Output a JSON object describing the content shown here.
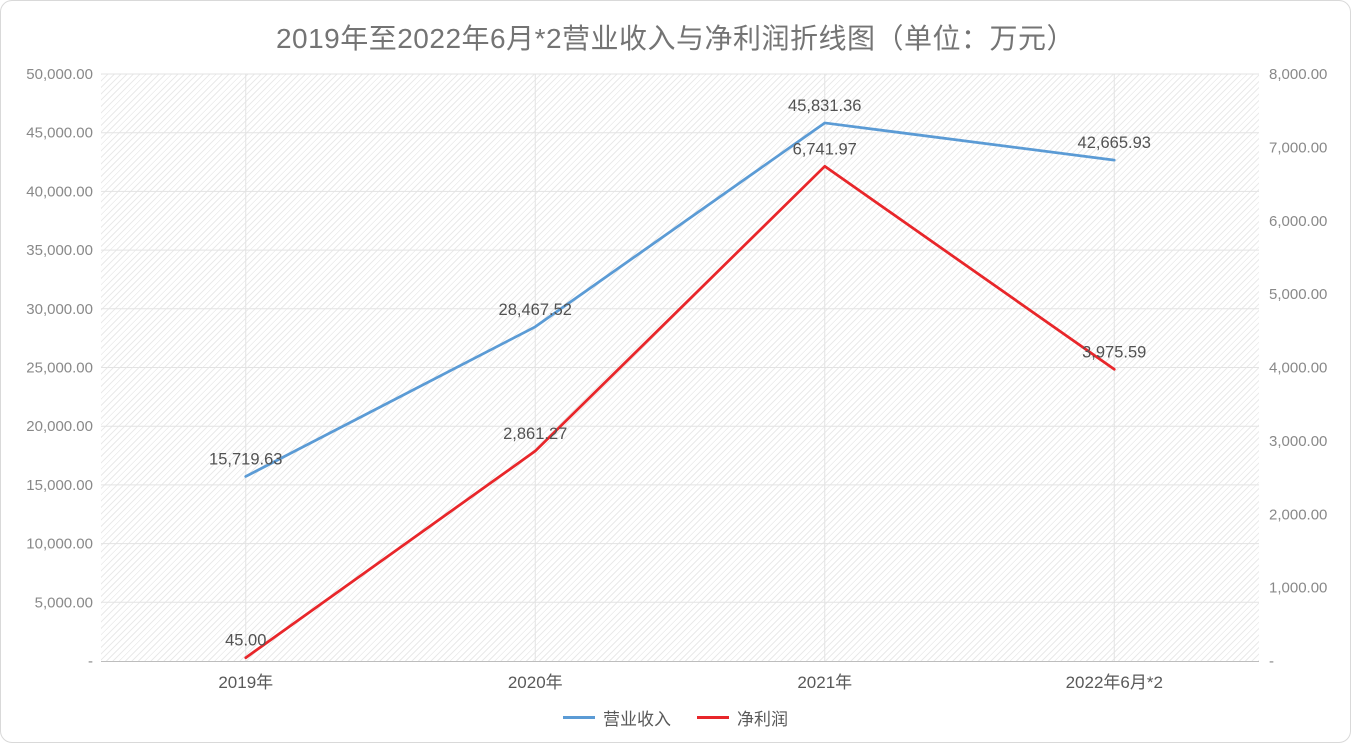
{
  "title": "2019年至2022年6月*2营业收入与净利润折线图（单位：万元）",
  "legend": {
    "items": [
      {
        "label": "营业收入",
        "color": "#5b9bd5"
      },
      {
        "label": "净利润",
        "color": "#e8262a"
      }
    ]
  },
  "chart_data": {
    "type": "line",
    "title": "2019年至2022年6月*2营业收入与净利润折线图（单位：万元）",
    "categories": [
      "2019年",
      "2020年",
      "2021年",
      "2022年6月*2"
    ],
    "series": [
      {
        "name": "营业收入",
        "axis": "left",
        "color": "#5b9bd5",
        "values": [
          15719.63,
          28467.52,
          45831.36,
          42665.93
        ],
        "labels": [
          "15,719.63",
          "28,467.52",
          "45,831.36",
          "42,665.93"
        ]
      },
      {
        "name": "净利润",
        "axis": "right",
        "color": "#e8262a",
        "values": [
          45.0,
          2861.27,
          6741.97,
          3975.59
        ],
        "labels": [
          "45.00",
          "2,861.27",
          "6,741.97",
          "3,975.59"
        ]
      }
    ],
    "left_axis": {
      "min": 0,
      "max": 50000,
      "step": 5000,
      "tick_labels": [
        "-",
        "5,000.00",
        "10,000.00",
        "15,000.00",
        "20,000.00",
        "25,000.00",
        "30,000.00",
        "35,000.00",
        "40,000.00",
        "45,000.00",
        "50,000.00"
      ]
    },
    "right_axis": {
      "min": 0,
      "max": 8000,
      "step": 1000,
      "tick_labels": [
        "-",
        "1,000.00",
        "2,000.00",
        "3,000.00",
        "4,000.00",
        "5,000.00",
        "6,000.00",
        "7,000.00",
        "8,000.00"
      ]
    },
    "grid": true,
    "plot_background": "diagonal-hatch",
    "legend_position": "bottom",
    "unit": "万元"
  }
}
